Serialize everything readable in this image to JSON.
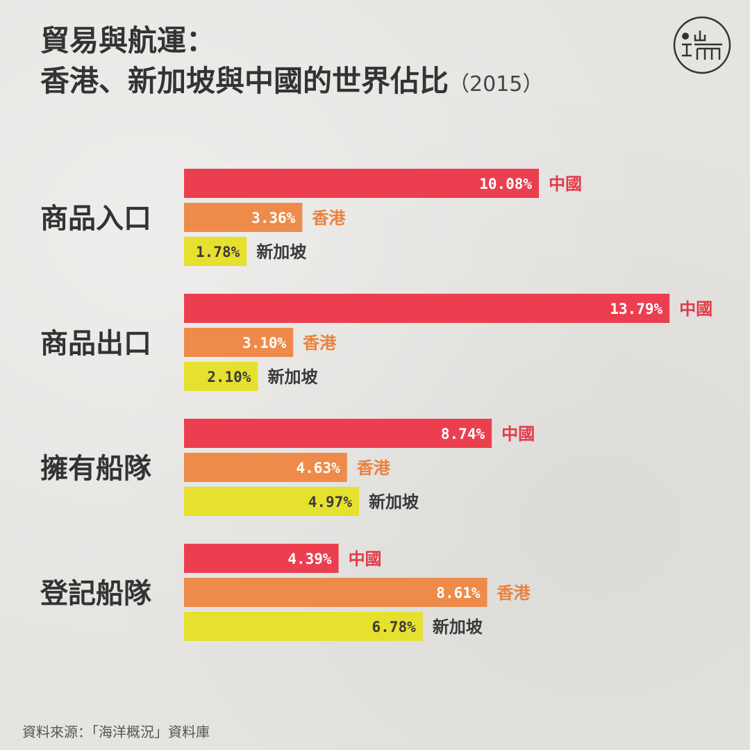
{
  "title": {
    "line1": "貿易與航運：",
    "line2": "香港、新加坡與中國的世界佔比",
    "year": "（2015）"
  },
  "logo": {
    "text": "端"
  },
  "source": "資料來源：「海洋概況」資料庫",
  "colors": {
    "china": "#eb3f50",
    "hongkong": "#ee8b4a",
    "singapore": "#e6e02e",
    "text": "#333333",
    "label_china": "#e23b48",
    "label_hongkong": "#e8823e",
    "label_singapore": "#3a3a3a"
  },
  "chart_data": {
    "type": "bar",
    "orientation": "horizontal",
    "title": "貿易與航運：香港、新加坡與中國的世界佔比（2015）",
    "categories": [
      "商品入口",
      "商品出口",
      "擁有船隊",
      "登記船隊"
    ],
    "series": [
      {
        "name": "中國",
        "values": [
          10.08,
          13.79,
          8.74,
          4.39
        ],
        "labels": [
          "10.08%",
          "13.79%",
          "8.74%",
          "4.39%"
        ]
      },
      {
        "name": "香港",
        "values": [
          3.36,
          3.1,
          4.63,
          8.61
        ],
        "labels": [
          "3.36%",
          "3.10%",
          "4.63%",
          "8.61%"
        ]
      },
      {
        "name": "新加坡",
        "values": [
          1.78,
          2.1,
          4.97,
          6.78
        ],
        "labels": [
          "1.78%",
          "2.10%",
          "4.97%",
          "6.78%"
        ]
      }
    ],
    "legend": "inline-right-of-bars",
    "grid": false
  }
}
